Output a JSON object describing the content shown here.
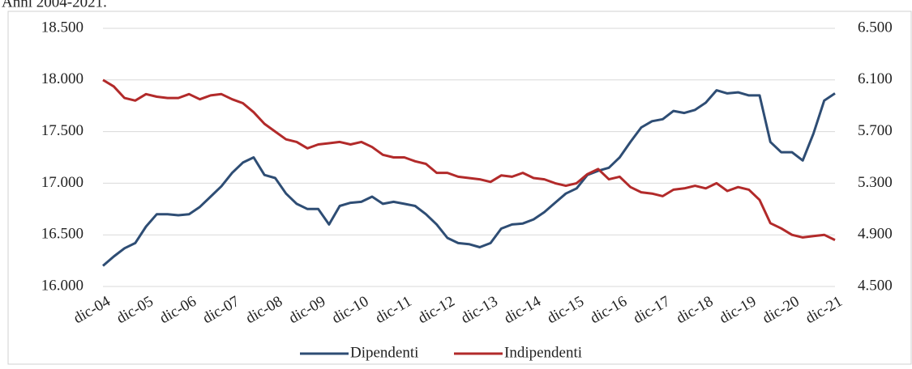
{
  "chart_data": {
    "type": "line",
    "title": "Anni 2004-2021.",
    "categories": [
      "dic-04",
      null,
      null,
      null,
      "dic-05",
      null,
      null,
      null,
      "dic-06",
      null,
      null,
      null,
      "dic-07",
      null,
      null,
      null,
      "dic-08",
      null,
      null,
      null,
      "dic-09",
      null,
      null,
      null,
      "dic-10",
      null,
      null,
      null,
      "dic-11",
      null,
      null,
      null,
      "dic-12",
      null,
      null,
      null,
      "dic-13",
      null,
      null,
      null,
      "dic-14",
      null,
      null,
      null,
      "dic-15",
      null,
      null,
      null,
      "dic-16",
      null,
      null,
      null,
      "dic-17",
      null,
      null,
      null,
      "dic-18",
      null,
      null,
      null,
      "dic-19",
      null,
      null,
      null,
      "dic-20",
      null,
      null,
      null,
      "dic-21"
    ],
    "series": [
      {
        "name": "Dipendenti",
        "color": "#2e4d74",
        "values": [
          16200,
          16290,
          16370,
          16420,
          16580,
          16700,
          16700,
          16690,
          16700,
          16770,
          16870,
          16970,
          17100,
          17200,
          17250,
          17080,
          17050,
          16900,
          16800,
          16750,
          16750,
          16600,
          16780,
          16810,
          16820,
          16870,
          16800,
          16820,
          16800,
          16780,
          16700,
          16600,
          16470,
          16420,
          16410,
          16380,
          16420,
          16560,
          16600,
          16610,
          16650,
          16720,
          16810,
          16900,
          16950,
          17080,
          17120,
          17150,
          17250,
          17400,
          17540,
          17600,
          17620,
          17700,
          17680,
          17710,
          17780,
          17900,
          17870,
          17880,
          17850,
          17850,
          17400,
          17300,
          17300,
          17220,
          17480,
          17800,
          17870
        ]
      },
      {
        "name": "Indipendenti",
        "color": "#b22a2a",
        "axis": "y2",
        "values": [
          6100,
          6050,
          5960,
          5940,
          5990,
          5970,
          5960,
          5960,
          5990,
          5950,
          5980,
          5990,
          5950,
          5920,
          5850,
          5760,
          5700,
          5640,
          5620,
          5570,
          5600,
          5610,
          5620,
          5600,
          5620,
          5580,
          5520,
          5500,
          5500,
          5470,
          5450,
          5380,
          5380,
          5350,
          5340,
          5330,
          5310,
          5360,
          5350,
          5380,
          5340,
          5330,
          5300,
          5280,
          5300,
          5370,
          5410,
          5330,
          5350,
          5270,
          5230,
          5220,
          5200,
          5250,
          5260,
          5280,
          5260,
          5300,
          5240,
          5270,
          5250,
          5170,
          4990,
          4950,
          4900,
          4880,
          4890,
          4900,
          4860
        ]
      }
    ],
    "ylim": [
      16000,
      18500
    ],
    "yticks": [
      {
        "value": 16000,
        "label": "16.000"
      },
      {
        "value": 16500,
        "label": "16.500"
      },
      {
        "value": 17000,
        "label": "17.000"
      },
      {
        "value": 17500,
        "label": "17.500"
      },
      {
        "value": 18000,
        "label": "18.000"
      },
      {
        "value": 18500,
        "label": "18.500"
      }
    ],
    "y2lim": [
      4500,
      6500
    ],
    "y2ticks": [
      {
        "value": 4500,
        "label": "4.500"
      },
      {
        "value": 4900,
        "label": "4.900"
      },
      {
        "value": 5300,
        "label": "5.300"
      },
      {
        "value": 5700,
        "label": "5.700"
      },
      {
        "value": 6100,
        "label": "6.100"
      },
      {
        "value": 6500,
        "label": "6.500"
      }
    ],
    "grid": true,
    "legend": "bottom"
  }
}
